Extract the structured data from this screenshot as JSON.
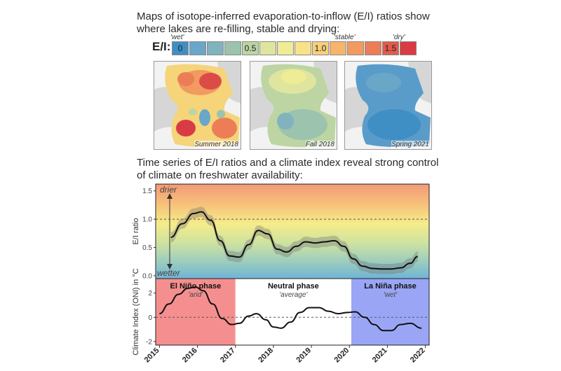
{
  "header": {
    "line1": "Maps of isotope-inferred evaporation-to-inflow (E/I) ratios show",
    "line2": "where lakes are re-filling, stable and drying:",
    "line3": "Time series of E/I ratios and a climate index reveal strong control",
    "line4": "of climate on freshwater availability:"
  },
  "scale": {
    "label": "E/I:",
    "tag_wet": "'wet'",
    "tag_stable": "'stable'",
    "tag_dry": "'dry'",
    "val_0": "0",
    "val_05": "0.5",
    "val_10": "1.0",
    "val_15": "1.5",
    "colors": [
      "#3f8fc4",
      "#6aa6c8",
      "#80b3bd",
      "#9cc3ae",
      "#bcd5a3",
      "#dfe59f",
      "#f0ec96",
      "#f7e28a",
      "#f8cf7a",
      "#f6b56c",
      "#f29a5f",
      "#ec7d56",
      "#e25a4d",
      "#d93b45"
    ]
  },
  "maps": [
    {
      "caption": "Summer 2018"
    },
    {
      "caption": "Fall 2018"
    },
    {
      "caption": "Spring 2021"
    }
  ],
  "chart_data": [
    {
      "type": "line",
      "title": "",
      "ylabel": "E/I ratio",
      "ylim": [
        -0.05,
        1.62
      ],
      "yticks": [
        "0.0",
        "0.5",
        "1.0",
        "1.5"
      ],
      "reference_line": 1.0,
      "annotation_top": "drier",
      "annotation_bottom": "wetter",
      "x": [
        2015.3,
        2015.6,
        2015.9,
        2016.1,
        2016.35,
        2016.6,
        2016.85,
        2017.1,
        2017.35,
        2017.6,
        2017.85,
        2018.1,
        2018.35,
        2018.6,
        2018.85,
        2019.1,
        2019.35,
        2019.6,
        2019.85,
        2020.1,
        2020.35,
        2020.6,
        2020.85,
        2021.1,
        2021.35,
        2021.6,
        2021.8
      ],
      "y": [
        0.68,
        0.92,
        1.1,
        1.13,
        0.98,
        0.62,
        0.35,
        0.33,
        0.55,
        0.8,
        0.74,
        0.47,
        0.42,
        0.52,
        0.6,
        0.58,
        0.6,
        0.62,
        0.52,
        0.3,
        0.17,
        0.13,
        0.12,
        0.12,
        0.14,
        0.22,
        0.34
      ]
    },
    {
      "type": "line",
      "title": "",
      "ylabel": "Climate Index (ONI) in °C",
      "ylim": [
        -2.3,
        3.2
      ],
      "yticks": [
        "-2",
        "0",
        "2"
      ],
      "reference_line": 0,
      "xlim": [
        2014.9,
        2022.1
      ],
      "xticks": [
        "2015",
        "2016",
        "2017",
        "2018",
        "2019",
        "2020",
        "2021",
        "2022"
      ],
      "phases": [
        {
          "name": "El Niño phase",
          "sub": "'arid'",
          "from": 2014.9,
          "to": 2017.0,
          "color": "#f58f8f"
        },
        {
          "name": "Neutral phase",
          "sub": "'average'",
          "from": 2017.0,
          "to": 2020.05,
          "color": "#ffffff"
        },
        {
          "name": "La Niña phase",
          "sub": "'wet'",
          "from": 2020.05,
          "to": 2022.1,
          "color": "#9aa6f5"
        }
      ],
      "x": [
        2015.0,
        2015.25,
        2015.5,
        2015.75,
        2015.95,
        2016.15,
        2016.4,
        2016.65,
        2016.9,
        2017.1,
        2017.35,
        2017.55,
        2017.8,
        2018.0,
        2018.2,
        2018.45,
        2018.7,
        2018.95,
        2019.2,
        2019.45,
        2019.7,
        2019.95,
        2020.15,
        2020.4,
        2020.65,
        2020.9,
        2021.1,
        2021.35,
        2021.6,
        2021.9
      ],
      "y": [
        0.3,
        1.1,
        1.9,
        2.4,
        2.5,
        2.2,
        1.1,
        -0.1,
        -0.6,
        -0.5,
        0.1,
        0.3,
        -0.2,
        -0.8,
        -0.9,
        -0.4,
        0.4,
        0.8,
        0.8,
        0.5,
        0.3,
        0.4,
        0.45,
        0.0,
        -0.6,
        -1.1,
        -1.1,
        -0.6,
        -0.5,
        -0.9
      ]
    }
  ]
}
